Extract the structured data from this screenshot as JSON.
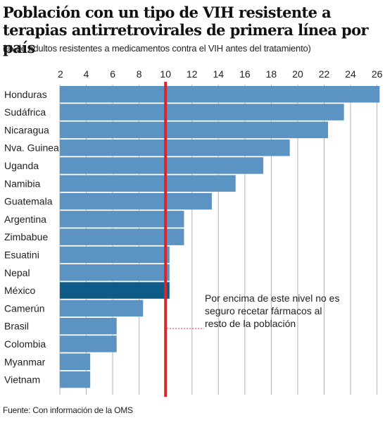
{
  "title": "Población con un tipo de VIH resistente a terapias antirretrovirales de primera línea por país",
  "subtitle": "(% de adultos resistentes a medicamentos contra el VIH antes del tratamiento)",
  "source": "Fuente: Con información de la OMS",
  "colors": {
    "bar": "#5b94c2",
    "highlight": "#0d5b86",
    "threshold": "#d9262c",
    "grid": "#b3b3b3",
    "panel": "#e6e6e6"
  },
  "chart_data": {
    "type": "bar",
    "orientation": "horizontal",
    "categories": [
      "Honduras",
      "Sudáfrica",
      "Nicaragua",
      "Nva. Guinea",
      "Uganda",
      "Namibia",
      "Guatemala",
      "Argentina",
      "Zimbabue",
      "Esuatini",
      "Nepal",
      "México",
      "Camerún",
      "Brasil",
      "Colombia",
      "Myanmar",
      "Vietnam"
    ],
    "values": [
      26.2,
      23.5,
      22.3,
      19.4,
      17.4,
      15.3,
      13.5,
      11.4,
      11.4,
      10.3,
      10.3,
      10.3,
      8.3,
      6.3,
      6.3,
      4.3,
      4.3
    ],
    "highlight_category": "México",
    "xlim": [
      2,
      26.5
    ],
    "xticks": [
      2,
      4,
      6,
      8,
      10,
      12,
      14,
      16,
      18,
      20,
      22,
      24,
      26
    ],
    "threshold": 10,
    "annotation": {
      "lines": [
        "Por encima de este nivel no es",
        "seguro recetar fármacos al",
        "resto de la población"
      ]
    },
    "grid": true,
    "legend": "none",
    "xlabel": "",
    "ylabel": ""
  }
}
